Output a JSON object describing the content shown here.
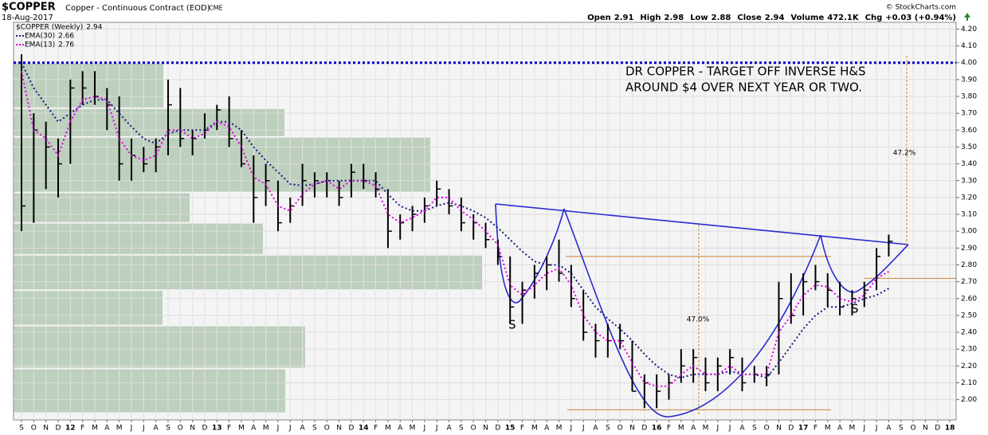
{
  "header": {
    "symbol": "$COPPER",
    "description": "Copper - Continuous Contract (EOD)",
    "exchange": "CME",
    "date": "18-Aug-2017",
    "quote": [
      {
        "label": "Open",
        "value": 2.91
      },
      {
        "label": "High",
        "value": 2.98
      },
      {
        "label": "Low",
        "value": 2.88
      },
      {
        "label": "Close",
        "value": 2.94
      },
      {
        "label": "Volume",
        "value": "472.1K"
      },
      {
        "label": "Chg",
        "value": "+0.03 (+0.94%)"
      }
    ],
    "brand": "© StockCharts.com"
  },
  "chart_data": {
    "type": "ohlc",
    "categories": [
      "S",
      "O",
      "N",
      "D",
      "12",
      "F",
      "M",
      "A",
      "M",
      "J",
      "J",
      "A",
      "S",
      "O",
      "N",
      "D",
      "13",
      "F",
      "M",
      "A",
      "M",
      "J",
      "J",
      "A",
      "S",
      "O",
      "N",
      "D",
      "14",
      "F",
      "M",
      "A",
      "M",
      "J",
      "J",
      "A",
      "S",
      "O",
      "N",
      "D",
      "15",
      "F",
      "M",
      "A",
      "M",
      "J",
      "J",
      "A",
      "S",
      "O",
      "N",
      "D",
      "16",
      "F",
      "M",
      "A",
      "M",
      "J",
      "J",
      "A",
      "S",
      "O",
      "N",
      "D",
      "17",
      "F",
      "M",
      "A",
      "M",
      "J",
      "J",
      "A",
      "S",
      "O",
      "N",
      "D",
      "18"
    ],
    "series": [
      {
        "name": "$COPPER (Weekly)",
        "type": "ohlc",
        "color": "#000000",
        "high": [
          4.05,
          3.7,
          3.65,
          3.55,
          3.9,
          3.95,
          3.95,
          3.85,
          3.8,
          3.55,
          3.5,
          3.55,
          3.9,
          3.85,
          3.6,
          3.7,
          3.75,
          3.8,
          3.6,
          3.45,
          3.4,
          3.3,
          3.2,
          3.4,
          3.35,
          3.35,
          3.3,
          3.4,
          3.4,
          3.35,
          3.25,
          3.1,
          3.15,
          3.2,
          3.3,
          3.25,
          3.2,
          3.1,
          3.05,
          2.95,
          2.85,
          2.7,
          2.8,
          2.85,
          2.95,
          2.8,
          2.65,
          2.45,
          2.45,
          2.45,
          2.35,
          2.15,
          2.15,
          2.15,
          2.3,
          2.3,
          2.25,
          2.25,
          2.3,
          2.25,
          2.2,
          2.2,
          2.7,
          2.75,
          2.75,
          2.8,
          2.75,
          2.7,
          2.65,
          2.7,
          2.9,
          2.98,
          null,
          null,
          null,
          null,
          null
        ],
        "low": [
          3.0,
          3.05,
          3.25,
          3.2,
          3.4,
          3.75,
          3.75,
          3.6,
          3.3,
          3.3,
          3.35,
          3.35,
          3.45,
          3.5,
          3.45,
          3.55,
          3.6,
          3.5,
          3.38,
          3.05,
          3.15,
          3.0,
          3.05,
          3.15,
          3.2,
          3.2,
          3.15,
          3.2,
          3.25,
          3.2,
          2.9,
          2.95,
          3.0,
          3.05,
          3.15,
          3.1,
          3.0,
          2.95,
          2.9,
          2.8,
          2.45,
          2.45,
          2.6,
          2.65,
          2.7,
          2.55,
          2.35,
          2.25,
          2.25,
          2.3,
          2.05,
          1.95,
          1.95,
          2.0,
          2.1,
          2.1,
          2.05,
          2.05,
          2.15,
          2.05,
          2.1,
          2.08,
          2.15,
          2.45,
          2.5,
          2.65,
          2.55,
          2.5,
          2.5,
          2.55,
          2.65,
          2.85,
          null,
          null,
          null,
          null,
          null
        ],
        "values": [
          3.15,
          3.6,
          3.5,
          3.4,
          3.85,
          3.85,
          3.8,
          3.75,
          3.4,
          3.45,
          3.4,
          3.5,
          3.75,
          3.55,
          3.55,
          3.6,
          3.72,
          3.55,
          3.4,
          3.2,
          3.3,
          3.05,
          3.15,
          3.3,
          3.3,
          3.3,
          3.2,
          3.35,
          3.3,
          3.25,
          3.0,
          3.05,
          3.1,
          3.15,
          3.25,
          3.15,
          3.05,
          3.05,
          2.95,
          2.85,
          2.55,
          2.65,
          2.75,
          2.8,
          2.75,
          2.6,
          2.4,
          2.35,
          2.35,
          2.35,
          2.05,
          2.1,
          2.05,
          2.1,
          2.2,
          2.25,
          2.1,
          2.2,
          2.25,
          2.1,
          2.15,
          2.15,
          2.6,
          2.5,
          2.7,
          2.7,
          2.65,
          2.55,
          2.6,
          2.65,
          2.85,
          2.94,
          null,
          null,
          null,
          null,
          null
        ]
      },
      {
        "name": "EMA(30)",
        "type": "line",
        "color": "#1a1a80",
        "values": [
          4.0,
          3.85,
          3.75,
          3.65,
          3.7,
          3.75,
          3.78,
          3.78,
          3.7,
          3.62,
          3.55,
          3.52,
          3.58,
          3.6,
          3.6,
          3.6,
          3.65,
          3.65,
          3.6,
          3.5,
          3.42,
          3.35,
          3.28,
          3.27,
          3.28,
          3.3,
          3.3,
          3.3,
          3.3,
          3.3,
          3.22,
          3.15,
          3.12,
          3.12,
          3.15,
          3.17,
          3.15,
          3.12,
          3.08,
          3.02,
          2.95,
          2.88,
          2.82,
          2.8,
          2.8,
          2.75,
          2.65,
          2.55,
          2.48,
          2.42,
          2.35,
          2.27,
          2.2,
          2.15,
          2.13,
          2.15,
          2.15,
          2.15,
          2.17,
          2.15,
          2.15,
          2.13,
          2.22,
          2.32,
          2.42,
          2.5,
          2.55,
          2.55,
          2.57,
          2.6,
          2.62,
          2.66,
          null,
          null,
          null,
          null,
          null
        ]
      },
      {
        "name": "EMA(13)",
        "type": "line",
        "color": "#e000e0",
        "values": [
          3.95,
          3.6,
          3.55,
          3.45,
          3.65,
          3.78,
          3.8,
          3.78,
          3.55,
          3.45,
          3.42,
          3.45,
          3.6,
          3.6,
          3.55,
          3.58,
          3.65,
          3.62,
          3.5,
          3.32,
          3.28,
          3.15,
          3.12,
          3.22,
          3.28,
          3.3,
          3.25,
          3.3,
          3.3,
          3.27,
          3.1,
          3.05,
          3.08,
          3.12,
          3.2,
          3.2,
          3.12,
          3.07,
          3.0,
          2.92,
          2.68,
          2.62,
          2.68,
          2.75,
          2.78,
          2.68,
          2.5,
          2.4,
          2.35,
          2.35,
          2.22,
          2.1,
          2.08,
          2.08,
          2.15,
          2.2,
          2.15,
          2.15,
          2.2,
          2.15,
          2.15,
          2.15,
          2.4,
          2.5,
          2.62,
          2.68,
          2.67,
          2.6,
          2.58,
          2.62,
          2.72,
          2.76,
          null,
          null,
          null,
          null,
          null
        ]
      }
    ],
    "volume_by_price": {
      "color": "#8fb08f",
      "bins": [
        1.92,
        2.185,
        2.44,
        2.65,
        2.86,
        3.05,
        3.23,
        3.56,
        3.73,
        4.0
      ],
      "values": [
        341,
        366,
        187,
        588,
        313,
        221,
        523,
        340,
        188
      ]
    },
    "reference_lines": [
      {
        "value": 4.0,
        "color": "#0000cc"
      },
      {
        "value": 2.85,
        "color": "#d08030"
      },
      {
        "value": 1.94,
        "color": "#d08030"
      },
      {
        "value": 2.72,
        "color": "#d08030"
      }
    ],
    "annotations": [
      "DR COPPER - TARGET OFF INVERSE H&S",
      "AROUND $4 OVER NEXT YEAR OR TWO.",
      "S",
      "S",
      "47.0%",
      "47.2%"
    ],
    "ylim": [
      1.88,
      4.24
    ],
    "yticks": [
      {
        "value": 2.0,
        "label": "2.00"
      },
      {
        "value": 2.1,
        "label": "2.10"
      },
      {
        "value": 2.2,
        "label": "2.20"
      },
      {
        "value": 2.3,
        "label": "2.30"
      },
      {
        "value": 2.4,
        "label": "2.40"
      },
      {
        "value": 2.5,
        "label": "2.50"
      },
      {
        "value": 2.6,
        "label": "2.60"
      },
      {
        "value": 2.7,
        "label": "2.70"
      },
      {
        "value": 2.8,
        "label": "2.80"
      },
      {
        "value": 2.9,
        "label": "2.90"
      },
      {
        "value": 3.0,
        "label": "3.00"
      },
      {
        "value": 3.1,
        "label": "3.10"
      },
      {
        "value": 3.2,
        "label": "3.20"
      },
      {
        "value": 3.3,
        "label": "3.30"
      },
      {
        "value": 3.4,
        "label": "3.40"
      },
      {
        "value": 3.5,
        "label": "3.50"
      },
      {
        "value": 3.6,
        "label": "3.60"
      },
      {
        "value": 3.7,
        "label": "3.70"
      },
      {
        "value": 3.8,
        "label": "3.80"
      },
      {
        "value": 3.9,
        "label": "3.90"
      },
      {
        "value": 4.0,
        "label": "4.00"
      },
      {
        "value": 4.1,
        "label": "4.10"
      },
      {
        "value": 4.2,
        "label": "4.20"
      }
    ],
    "grid": true
  }
}
